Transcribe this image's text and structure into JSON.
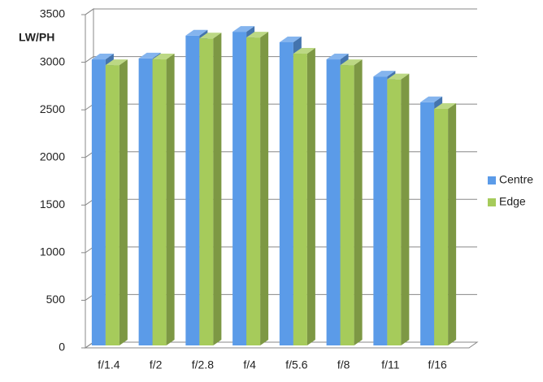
{
  "chart_data": {
    "type": "bar3d",
    "y_label": "LW/PH",
    "categories": [
      "f/1.4",
      "f/2",
      "f/2.8",
      "f/4",
      "f/5.6",
      "f/8",
      "f/11",
      "f/16"
    ],
    "series": [
      {
        "name": "Centre",
        "color": "#5b9be8",
        "values": [
          3030,
          3040,
          3280,
          3320,
          3210,
          3030,
          2850,
          2580
        ]
      },
      {
        "name": "Edge",
        "color": "#a6cb5b",
        "values": [
          2970,
          3030,
          3250,
          3260,
          3090,
          2970,
          2820,
          2510
        ]
      }
    ],
    "ylim": [
      0,
      3500
    ],
    "yticks": [
      0,
      500,
      1000,
      1500,
      2000,
      2500,
      3000,
      3500
    ],
    "grid": true,
    "legend": "right"
  }
}
